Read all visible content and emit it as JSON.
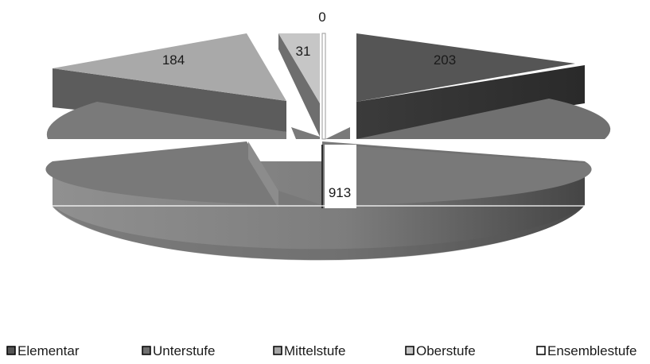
{
  "chart_data": {
    "type": "pie",
    "variant": "3d-exploded",
    "title": "",
    "legend_position": "bottom",
    "slices": [
      {
        "name": "Elementar",
        "value": 203,
        "label": "203",
        "color": "#555555"
      },
      {
        "name": "Unterstufe",
        "value": 913,
        "label": "913",
        "color": "#6f6f6f"
      },
      {
        "name": "Mittelstufe",
        "value": 184,
        "label": "184",
        "color": "#a6a6a6"
      },
      {
        "name": "Oberstufe",
        "value": 31,
        "label": "31",
        "color": "#c6c6c6"
      },
      {
        "name": "Ensemblestufe",
        "value": 0,
        "label": "0",
        "color": "#ffffff"
      }
    ]
  }
}
